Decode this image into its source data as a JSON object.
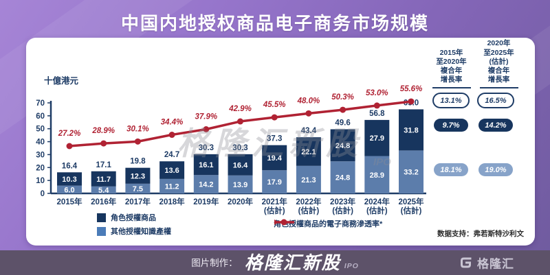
{
  "title": "中国内地授权商品电子商务市场规模",
  "colors": {
    "background_purple": "#8466b8",
    "footer_bar": "#5d5269",
    "bar_dark_navy": "#17355e",
    "bar_light_blue": "#5c7dab",
    "legend_light_blue": "#4b7cb8",
    "line_red": "#b02233",
    "axis_navy": "#1e3c66",
    "oval_light_blue": "#87a3c9",
    "brand_pink": "#ff4d88"
  },
  "chart_data": {
    "type": "bar",
    "subtype": "stacked-bars-with-line",
    "unit_label": "十億港元",
    "ylim": [
      0,
      70
    ],
    "yticks": [
      0,
      10,
      20,
      30,
      40,
      50,
      60,
      70
    ],
    "grid": false,
    "categories": [
      {
        "year": "2015年",
        "note": ""
      },
      {
        "year": "2016年",
        "note": ""
      },
      {
        "year": "2017年",
        "note": ""
      },
      {
        "year": "2018年",
        "note": ""
      },
      {
        "year": "2019年",
        "note": ""
      },
      {
        "year": "2020年",
        "note": ""
      },
      {
        "year": "2021年",
        "note": "(估計)"
      },
      {
        "year": "2022年",
        "note": "(估計)"
      },
      {
        "year": "2023年",
        "note": "(估計)"
      },
      {
        "year": "2024年",
        "note": "(估計)"
      },
      {
        "year": "2025年",
        "note": "(估計)"
      }
    ],
    "series": [
      {
        "name": "角色授權商品",
        "color": "#17355e",
        "values": [
          10.3,
          11.7,
          12.3,
          13.6,
          16.1,
          16.4,
          19.4,
          22.1,
          24.8,
          27.9,
          31.8
        ]
      },
      {
        "name": "其他授權知識產權",
        "color": "#5c7dab",
        "values": [
          6.0,
          5.4,
          7.5,
          11.2,
          14.2,
          13.9,
          17.9,
          21.3,
          24.8,
          28.9,
          33.2
        ]
      }
    ],
    "totals": [
      16.4,
      17.1,
      19.8,
      24.7,
      30.3,
      30.3,
      37.3,
      43.4,
      49.6,
      56.8,
      65.0
    ],
    "line": {
      "name": "角色授權商品的電子商務滲透率*",
      "color": "#b02233",
      "values_pct": [
        27.2,
        28.9,
        30.1,
        34.4,
        37.9,
        42.9,
        45.5,
        48.0,
        50.3,
        53.0,
        55.6
      ]
    }
  },
  "cagr_panel": {
    "col1_header": "2015年\n至2020年\n複合年\n增長率",
    "col2_header": "2020年\n至2025年\n(估計)\n複合年\n增長率",
    "rows": [
      {
        "style": "outline",
        "v1": "13.1%",
        "v2": "16.5%"
      },
      {
        "style": "dark",
        "v1": "9.7%",
        "v2": "14.2%"
      },
      {
        "style": "light",
        "v1": "18.1%",
        "v2": "19.0%"
      }
    ]
  },
  "legend": {
    "items": [
      {
        "label": "角色授權商品",
        "color": "#17355e"
      },
      {
        "label": "其他授權知識產權",
        "color": "#4b7cb8"
      },
      {
        "label": "角色授權商品的電子商務滲透率*",
        "color": "#b02233"
      }
    ]
  },
  "watermark": {
    "text": "格隆汇新股",
    "suffix": "IPO"
  },
  "source": "数据支持：弗若斯特沙利文",
  "footer": {
    "prefix": "图片制作：",
    "brand": "格隆汇新股",
    "brand_suffix": "IPO",
    "logo_text": "格隆汇"
  }
}
